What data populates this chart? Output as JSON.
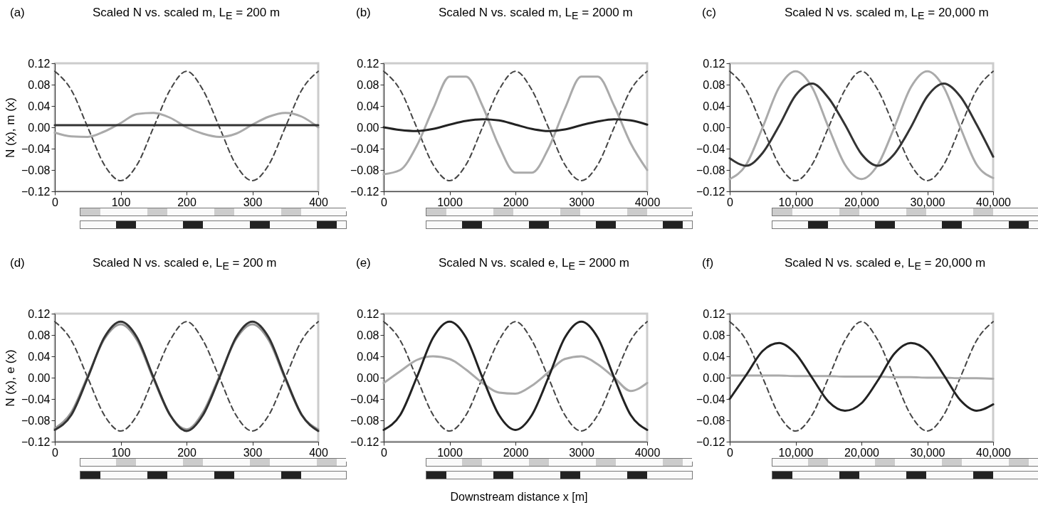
{
  "chart_data": [
    {
      "type": "line",
      "title": "Scaled N vs. scaled m, L$_{E}$ = 200 m",
      "annotations": [
        "(a)"
      ],
      "ylabel": "N (x), m (x)",
      "x": [
        0,
        25,
        50,
        75,
        100,
        125,
        150,
        175,
        200,
        225,
        250,
        275,
        300,
        325,
        350,
        375,
        400
      ],
      "series": [
        {
          "color": "#444444",
          "line_style": "dashed",
          "values": [
            0.105,
            0.07,
            0,
            -0.07,
            -0.1,
            -0.07,
            0,
            0.07,
            0.105,
            0.07,
            0,
            -0.07,
            -0.1,
            -0.07,
            0,
            0.07,
            0.105
          ]
        },
        {
          "color": "#aaaaaa",
          "values": [
            -0.01,
            -0.017,
            -0.018,
            -0.008,
            0.008,
            0.025,
            0.027,
            0.018,
            0.0,
            -0.012,
            -0.018,
            -0.012,
            0.005,
            0.02,
            0.027,
            0.02,
            0.0
          ]
        },
        {
          "color": "#333333",
          "values": [
            0.004,
            0.004,
            0.004,
            0.004,
            0.004,
            0.004,
            0.004,
            0.004,
            0.004,
            0.004,
            0.004,
            0.004,
            0.004,
            0.004,
            0.004,
            0.004,
            0.004
          ]
        }
      ],
      "xlim": [
        0,
        400
      ],
      "xticks": [
        0,
        100,
        200,
        300,
        400
      ],
      "ylim": [
        -0.12,
        0.12
      ],
      "yticks": [
        {
          "value": -0.12,
          "label": "−0.12"
        },
        {
          "value": -0.08,
          "label": "−0.08"
        },
        {
          "value": -0.04,
          "label": "−0.04"
        },
        {
          "value": 0,
          "label": "0.00"
        },
        0.04,
        0.08,
        0.12
      ]
    },
    {
      "type": "line",
      "title": "Scaled N vs. scaled m, L$_{E}$ = 2000 m",
      "annotations": [
        "(b)"
      ],
      "x": [
        0,
        250,
        500,
        750,
        1000,
        1250,
        1500,
        1750,
        2000,
        2250,
        2500,
        2750,
        3000,
        3250,
        3500,
        3750,
        4000
      ],
      "series": [
        {
          "color": "#444444",
          "line_style": "dashed",
          "values": [
            0.105,
            0.07,
            0,
            -0.07,
            -0.1,
            -0.07,
            0,
            0.07,
            0.105,
            0.07,
            0,
            -0.07,
            -0.1,
            -0.07,
            0,
            0.07,
            0.105
          ]
        },
        {
          "color": "#aaaaaa",
          "values": [
            -0.088,
            -0.08,
            -0.035,
            0.035,
            0.095,
            0.095,
            0.04,
            -0.035,
            -0.085,
            -0.085,
            -0.04,
            0.035,
            0.095,
            0.095,
            0.04,
            -0.03,
            -0.08
          ]
        },
        {
          "color": "#222222",
          "values": [
            0.0,
            -0.005,
            -0.007,
            -0.003,
            0.005,
            0.012,
            0.015,
            0.013,
            0.005,
            -0.003,
            -0.007,
            -0.004,
            0.004,
            0.011,
            0.015,
            0.013,
            0.005
          ]
        }
      ],
      "xlim": [
        0,
        4000
      ],
      "xticks": [
        0,
        1000,
        2000,
        3000,
        4000
      ],
      "ylim": [
        -0.12,
        0.12
      ],
      "yticks": [
        {
          "value": -0.12,
          "label": "−0.12"
        },
        {
          "value": -0.08,
          "label": "−0.08"
        },
        {
          "value": -0.04,
          "label": "−0.04"
        },
        {
          "value": 0,
          "label": "0.00"
        },
        0.04,
        0.08,
        0.12
      ]
    },
    {
      "type": "line",
      "title": "Scaled N vs. scaled m, L$_{E}$ = 20,000 m",
      "annotations": [
        "(c)"
      ],
      "x": [
        0,
        2500,
        5000,
        7500,
        10000,
        12500,
        15000,
        17500,
        20000,
        22500,
        25000,
        27500,
        30000,
        32500,
        35000,
        37500,
        40000
      ],
      "series": [
        {
          "color": "#444444",
          "line_style": "dashed",
          "values": [
            0.105,
            0.07,
            0,
            -0.07,
            -0.1,
            -0.07,
            0,
            0.07,
            0.105,
            0.07,
            0,
            -0.07,
            -0.1,
            -0.07,
            0,
            0.07,
            0.105
          ]
        },
        {
          "color": "#aaaaaa",
          "values": [
            -0.097,
            -0.07,
            0,
            0.075,
            0.105,
            0.075,
            0,
            -0.07,
            -0.097,
            -0.07,
            0,
            0.075,
            0.105,
            0.075,
            0,
            -0.07,
            -0.095
          ]
        },
        {
          "color": "#333333",
          "values": [
            -0.058,
            -0.072,
            -0.048,
            0.003,
            0.06,
            0.082,
            0.055,
            0.005,
            -0.05,
            -0.072,
            -0.05,
            0.0,
            0.058,
            0.082,
            0.058,
            0.005,
            -0.055
          ]
        }
      ],
      "xlim": [
        0,
        40000
      ],
      "xticks": [
        0,
        {
          "value": 10000,
          "label": "10,000"
        },
        {
          "value": 20000,
          "label": "20,000"
        },
        {
          "value": 30000,
          "label": "30,000"
        },
        {
          "value": 40000,
          "label": "40,000"
        }
      ],
      "ylim": [
        -0.12,
        0.12
      ],
      "yticks": [
        {
          "value": -0.12,
          "label": "−0.12"
        },
        {
          "value": -0.08,
          "label": "−0.08"
        },
        {
          "value": -0.04,
          "label": "−0.04"
        },
        {
          "value": 0,
          "label": "0.00"
        },
        0.04,
        0.08,
        0.12
      ]
    },
    {
      "type": "line",
      "title": "Scaled N vs. scaled e, L$_{E}$ = 200 m",
      "annotations": [
        "(d)"
      ],
      "ylabel": "N (x), e (x)",
      "x": [
        0,
        25,
        50,
        75,
        100,
        125,
        150,
        175,
        200,
        225,
        250,
        275,
        300,
        325,
        350,
        375,
        400
      ],
      "series": [
        {
          "color": "#444444",
          "line_style": "dashed",
          "values": [
            0.105,
            0.07,
            0,
            -0.07,
            -0.1,
            -0.07,
            0,
            0.07,
            0.105,
            0.07,
            0,
            -0.07,
            -0.1,
            -0.07,
            0,
            0.07,
            0.105
          ]
        },
        {
          "color": "#999999",
          "values": [
            -0.095,
            -0.065,
            0.003,
            0.072,
            0.1,
            0.07,
            -0.003,
            -0.07,
            -0.097,
            -0.065,
            0.003,
            0.072,
            0.1,
            0.07,
            -0.003,
            -0.07,
            -0.097
          ]
        },
        {
          "color": "#333333",
          "values": [
            -0.098,
            -0.07,
            0.0,
            0.075,
            0.105,
            0.075,
            0.0,
            -0.07,
            -0.1,
            -0.07,
            0,
            0.075,
            0.105,
            0.075,
            0,
            -0.07,
            -0.1
          ]
        }
      ],
      "xlim": [
        0,
        400
      ],
      "xticks": [
        0,
        100,
        200,
        300,
        400
      ],
      "ylim": [
        -0.12,
        0.12
      ],
      "yticks": [
        {
          "value": -0.12,
          "label": "−0.12"
        },
        {
          "value": -0.08,
          "label": "−0.08"
        },
        {
          "value": -0.04,
          "label": "−0.04"
        },
        {
          "value": 0,
          "label": "0.00"
        },
        0.04,
        0.08,
        0.12
      ]
    },
    {
      "type": "line",
      "title": "Scaled N vs. scaled e, L$_{E}$ = 2000 m",
      "annotations": [
        "(e)"
      ],
      "xlabel": "Downstream distance x [m]",
      "x": [
        0,
        250,
        500,
        750,
        1000,
        1250,
        1500,
        1750,
        2000,
        2250,
        2500,
        2750,
        3000,
        3250,
        3500,
        3750,
        4000
      ],
      "series": [
        {
          "color": "#444444",
          "line_style": "dashed",
          "values": [
            0.105,
            0.07,
            0,
            -0.07,
            -0.1,
            -0.07,
            0,
            0.07,
            0.105,
            0.07,
            0,
            -0.07,
            -0.1,
            -0.07,
            0,
            0.07,
            0.105
          ]
        },
        {
          "color": "#aaaaaa",
          "values": [
            -0.01,
            0.012,
            0.033,
            0.04,
            0.035,
            0.015,
            -0.01,
            -0.028,
            -0.03,
            -0.015,
            0.01,
            0.035,
            0.04,
            0.025,
            0.0,
            -0.025,
            -0.01
          ]
        },
        {
          "color": "#222222",
          "values": [
            -0.098,
            -0.07,
            0.0,
            0.075,
            0.105,
            0.075,
            0,
            -0.07,
            -0.098,
            -0.07,
            0,
            0.075,
            0.105,
            0.075,
            0,
            -0.07,
            -0.098
          ]
        }
      ],
      "xlim": [
        0,
        4000
      ],
      "xticks": [
        0,
        1000,
        2000,
        3000,
        4000
      ],
      "ylim": [
        -0.12,
        0.12
      ],
      "yticks": [
        {
          "value": -0.12,
          "label": "−0.12"
        },
        {
          "value": -0.08,
          "label": "−0.08"
        },
        {
          "value": -0.04,
          "label": "−0.04"
        },
        {
          "value": 0,
          "label": "0.00"
        },
        0.04,
        0.08,
        0.12
      ]
    },
    {
      "type": "line",
      "title": "Scaled N vs. scaled e, L$_{E}$ = 20,000 m",
      "annotations": [
        "(f)"
      ],
      "x": [
        0,
        2500,
        5000,
        7500,
        10000,
        12500,
        15000,
        17500,
        20000,
        22500,
        25000,
        27500,
        30000,
        32500,
        35000,
        37500,
        40000
      ],
      "series": [
        {
          "color": "#444444",
          "line_style": "dashed",
          "values": [
            0.105,
            0.07,
            0,
            -0.07,
            -0.1,
            -0.07,
            0,
            0.07,
            0.105,
            0.07,
            0,
            -0.07,
            -0.1,
            -0.07,
            0,
            0.07,
            0.105
          ]
        },
        {
          "color": "#aaaaaa",
          "values": [
            0.004,
            0.004,
            0.004,
            0.004,
            0.003,
            0.003,
            0.003,
            0.002,
            0.002,
            0.002,
            0.001,
            0.001,
            0.0,
            0.0,
            -0.001,
            -0.001,
            -0.002
          ]
        },
        {
          "color": "#222222",
          "values": [
            -0.04,
            0.005,
            0.05,
            0.065,
            0.045,
            0.0,
            -0.045,
            -0.062,
            -0.048,
            -0.005,
            0.045,
            0.065,
            0.05,
            0.005,
            -0.042,
            -0.062,
            -0.05
          ]
        }
      ],
      "xlim": [
        0,
        40000
      ],
      "xticks": [
        0,
        {
          "value": 10000,
          "label": "10,000"
        },
        {
          "value": 20000,
          "label": "20,000"
        },
        {
          "value": 30000,
          "label": "30,000"
        },
        {
          "value": 40000,
          "label": "40,000"
        }
      ],
      "ylim": [
        -0.12,
        0.12
      ],
      "yticks": [
        {
          "value": -0.12,
          "label": "−0.12"
        },
        {
          "value": -0.08,
          "label": "−0.08"
        },
        {
          "value": -0.04,
          "label": "−0.04"
        },
        {
          "value": 0,
          "label": "0.00"
        },
        0.04,
        0.08,
        0.12
      ]
    }
  ]
}
